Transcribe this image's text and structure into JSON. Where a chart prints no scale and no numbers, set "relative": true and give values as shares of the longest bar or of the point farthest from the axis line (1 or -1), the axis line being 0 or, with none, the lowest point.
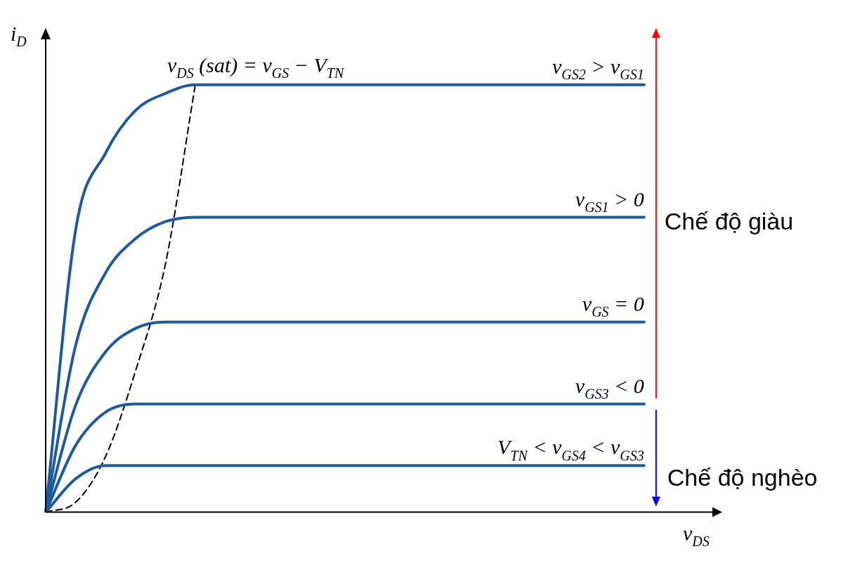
{
  "chart_data": {
    "type": "line",
    "relative": true,
    "xlabel": "v$_{DS}$",
    "ylabel": "i$_{D}$",
    "categories": [
      null,
      null,
      null,
      null,
      null,
      null,
      null,
      null,
      null,
      null,
      null,
      null,
      null,
      null,
      null,
      null,
      null,
      null,
      null,
      null,
      null,
      null,
      null
    ],
    "series": [
      {
        "name": "v$_{GS2}$ > v$_{GS1}$",
        "color": "#1f5a9c",
        "values": [
          0,
          0.66,
          0.84,
          0.94,
          0.98,
          1,
          1,
          1,
          1,
          1,
          1,
          1,
          1,
          1,
          1,
          1,
          1,
          1,
          1,
          1,
          1,
          null,
          null
        ]
      },
      {
        "name": "v$_{GS1}$ > 0",
        "color": "#1f5a9c",
        "values": [
          0,
          0.39,
          0.56,
          0.64,
          0.68,
          0.69,
          0.69,
          0.69,
          0.69,
          0.69,
          0.69,
          0.69,
          0.69,
          0.69,
          0.69,
          0.69,
          0.69,
          0.69,
          0.69,
          0.69,
          0.69,
          null,
          null
        ]
      },
      {
        "name": "v$_{GS}$ = 0",
        "color": "#1f5a9c",
        "values": [
          0,
          0.25,
          0.375,
          0.43,
          0.445,
          0.445,
          0.445,
          0.445,
          0.445,
          0.445,
          0.445,
          0.445,
          0.445,
          0.445,
          0.445,
          0.445,
          0.445,
          0.445,
          0.445,
          0.445,
          0.445,
          null,
          null
        ]
      },
      {
        "name": "v$_{GS3}$ < 0",
        "color": "#1f5a9c",
        "values": [
          0,
          0.156,
          0.234,
          0.253,
          0.253,
          0.253,
          0.253,
          0.253,
          0.253,
          0.253,
          0.253,
          0.253,
          0.253,
          0.253,
          0.253,
          0.253,
          0.253,
          0.253,
          0.253,
          0.253,
          0.253,
          null,
          null
        ]
      },
      {
        "name": "V$_{TN}$ < v$_{GS4}$ < v$_{GS3}$",
        "color": "#1f5a9c",
        "values": [
          0,
          0.078,
          0.109,
          0.109,
          0.109,
          0.109,
          0.109,
          0.109,
          0.109,
          0.109,
          0.109,
          0.109,
          0.109,
          0.109,
          0.109,
          0.109,
          0.109,
          0.109,
          0.109,
          0.109,
          0.109,
          null,
          null
        ]
      },
      {
        "name": "v$_{DS}$ (sat) = v$_{GS}$ − V$_{TN}$",
        "color": "#000000",
        "line_style": "dashed",
        "values": [
          0,
          0.023,
          0.13,
          0.33,
          0.58,
          1,
          null,
          null,
          null,
          null,
          null,
          null,
          null,
          null,
          null,
          null,
          null,
          null,
          null,
          null,
          null,
          null,
          null
        ]
      }
    ],
    "annotations": [
      "Chế độ giàu",
      "Chế độ nghèo"
    ],
    "legend": false,
    "grid": false,
    "marker": "none",
    "line_style": "solid"
  }
}
